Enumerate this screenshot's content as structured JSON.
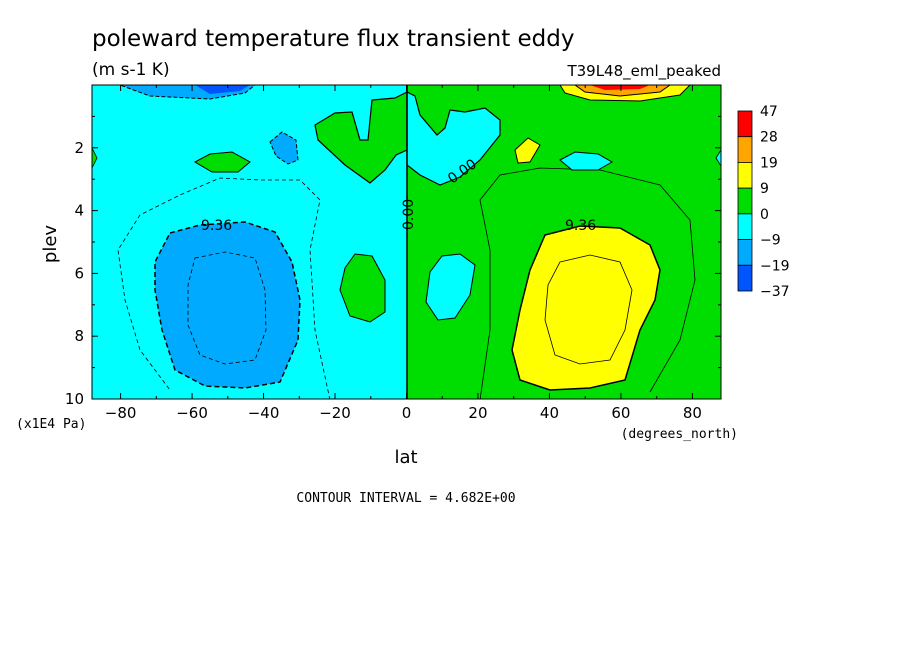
{
  "chart_data": {
    "type": "contour",
    "title": "poleward temperature flux transient eddy",
    "units": "(m s-1 K)",
    "dataset": "T39L48_eml_peaked",
    "xlabel": "lat",
    "x_units": "(degrees_north)",
    "ylabel": "plev",
    "y_units": "(x1E4 Pa)",
    "xlim": [
      -88,
      88
    ],
    "ylim": [
      10,
      0
    ],
    "x_ticks": [
      -80,
      -60,
      -40,
      -20,
      0,
      20,
      40,
      60,
      80
    ],
    "y_ticks": [
      2,
      4,
      6,
      8,
      10
    ],
    "contour_interval_text": "CONTOUR INTERVAL = 4.682E+00",
    "contour_labels": [
      "9.36",
      "0.00",
      "0.00",
      "9.36"
    ],
    "colorbar": {
      "levels": [
        "47",
        "28",
        "19",
        "9",
        "0",
        "-9",
        "-19",
        "-37"
      ],
      "colors": [
        "#ff0000",
        "#ffa500",
        "#ffff00",
        "#00dd00",
        "#00ffff",
        "#00aaff",
        "#0055ff"
      ]
    },
    "fill_colors": {
      "neg_weak": "#00ffff",
      "neg_mid": "#00aaff",
      "neg_strong": "#0055ff",
      "pos_weak": "#00dd00",
      "pos_mid": "#ffff00",
      "pos_strong": "#ffa500",
      "pos_max": "#ff0000"
    }
  }
}
